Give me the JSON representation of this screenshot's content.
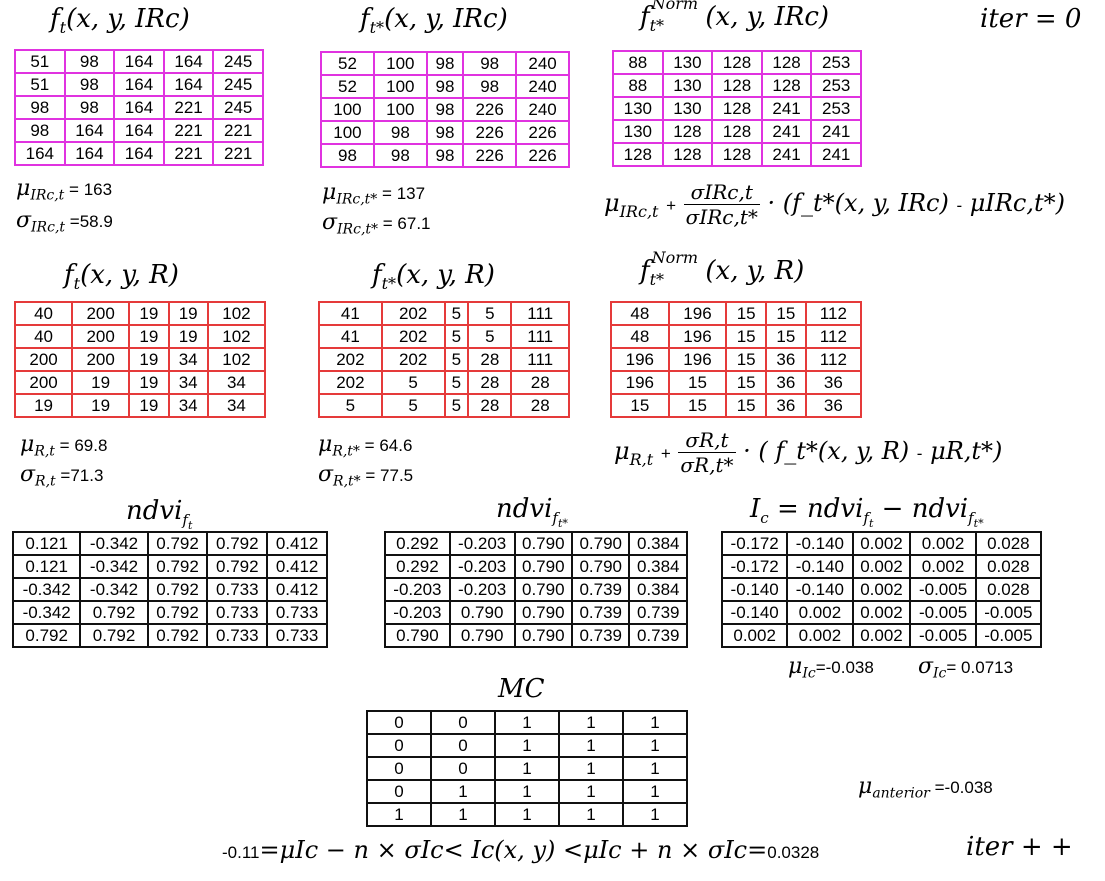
{
  "iter_label": "iter = 0",
  "iter_inc_label": "iter + +",
  "ir": {
    "orig": {
      "title": "f_t(x, y, IRc)",
      "rows": [
        [
          "51",
          "98",
          "164",
          "164",
          "245"
        ],
        [
          "51",
          "98",
          "164",
          "164",
          "245"
        ],
        [
          "98",
          "98",
          "164",
          "221",
          "245"
        ],
        [
          "98",
          "164",
          "164",
          "221",
          "221"
        ],
        [
          "164",
          "164",
          "164",
          "221",
          "221"
        ]
      ],
      "mu_sym": "μ",
      "mu_sub": "IRc,t",
      "mu_val": "= 163",
      "sigma_sym": "σ",
      "sigma_sub": "IRc,t",
      "sigma_val": "=58.9"
    },
    "star": {
      "title": "f_t*(x, y, IRc)",
      "rows": [
        [
          "52",
          "100",
          "98",
          "98",
          "240"
        ],
        [
          "52",
          "100",
          "98",
          "98",
          "240"
        ],
        [
          "100",
          "100",
          "98",
          "226",
          "240"
        ],
        [
          "100",
          "98",
          "98",
          "226",
          "226"
        ],
        [
          "98",
          "98",
          "98",
          "226",
          "226"
        ]
      ],
      "mu_sym": "μ",
      "mu_sub": "IRc,t*",
      "mu_val": "= 137",
      "sigma_sym": "σ",
      "sigma_sub": "IRc,t*",
      "sigma_val": "= 67.1"
    },
    "norm": {
      "title": "f_t*^Norm(x, y, IRc)",
      "rows": [
        [
          "88",
          "130",
          "128",
          "128",
          "253"
        ],
        [
          "88",
          "130",
          "128",
          "128",
          "253"
        ],
        [
          "130",
          "130",
          "128",
          "241",
          "253"
        ],
        [
          "130",
          "128",
          "128",
          "241",
          "241"
        ],
        [
          "128",
          "128",
          "128",
          "241",
          "241"
        ]
      ]
    },
    "formula": {
      "mu": "μ",
      "mu_sub": "IRc,t",
      "plus": "+",
      "num": "σIRc,t",
      "den": "σIRc,t*",
      "rest": "· (f_t*(x, y, IRc)",
      "minus": "-",
      "mu2": "μIRc,t*",
      "close": ")"
    }
  },
  "r": {
    "orig": {
      "title": "f_t(x, y, R)",
      "rows": [
        [
          "40",
          "200",
          "19",
          "19",
          "102"
        ],
        [
          "40",
          "200",
          "19",
          "19",
          "102"
        ],
        [
          "200",
          "200",
          "19",
          "34",
          "102"
        ],
        [
          "200",
          "19",
          "19",
          "34",
          "34"
        ],
        [
          "19",
          "19",
          "19",
          "34",
          "34"
        ]
      ],
      "mu_sym": "μ",
      "mu_sub": "R,t",
      "mu_val": "= 69.8",
      "sigma_sym": "σ",
      "sigma_sub": "R,t",
      "sigma_val": "=71.3"
    },
    "star": {
      "title": "f_t*(x, y, R)",
      "rows": [
        [
          "41",
          "202",
          "5",
          "5",
          "111"
        ],
        [
          "41",
          "202",
          "5",
          "5",
          "111"
        ],
        [
          "202",
          "202",
          "5",
          "28",
          "111"
        ],
        [
          "202",
          "5",
          "5",
          "28",
          "28"
        ],
        [
          "5",
          "5",
          "5",
          "28",
          "28"
        ]
      ],
      "mu_sym": "μ",
      "mu_sub": "R,t*",
      "mu_val": "= 64.6",
      "sigma_sym": "σ",
      "sigma_sub": "R,t*",
      "sigma_val": "= 77.5"
    },
    "norm": {
      "title": "f_t*^Norm(x, y, R)",
      "rows": [
        [
          "48",
          "196",
          "15",
          "15",
          "112"
        ],
        [
          "48",
          "196",
          "15",
          "15",
          "112"
        ],
        [
          "196",
          "196",
          "15",
          "36",
          "112"
        ],
        [
          "196",
          "15",
          "15",
          "36",
          "36"
        ],
        [
          "15",
          "15",
          "15",
          "36",
          "36"
        ]
      ]
    },
    "formula": {
      "mu": "μ",
      "mu_sub": "R,t",
      "plus": "+",
      "num": "σR,t",
      "den": "σR,t*",
      "rest": "· ( f_t*(x, y, R)",
      "minus": "-",
      "mu2": "μR,t*",
      "close": ")"
    }
  },
  "ndvi": {
    "t": {
      "title": "ndvi_ft",
      "rows": [
        [
          "0.121",
          "-0.342",
          "0.792",
          "0.792",
          "0.412"
        ],
        [
          "0.121",
          "-0.342",
          "0.792",
          "0.792",
          "0.412"
        ],
        [
          "-0.342",
          "-0.342",
          "0.792",
          "0.733",
          "0.412"
        ],
        [
          "-0.342",
          "0.792",
          "0.792",
          "0.733",
          "0.733"
        ],
        [
          "0.792",
          "0.792",
          "0.792",
          "0.733",
          "0.733"
        ]
      ]
    },
    "tstar": {
      "title": "ndvi_ft*",
      "rows": [
        [
          "0.292",
          "-0.203",
          "0.790",
          "0.790",
          "0.384"
        ],
        [
          "0.292",
          "-0.203",
          "0.790",
          "0.790",
          "0.384"
        ],
        [
          "-0.203",
          "-0.203",
          "0.790",
          "0.739",
          "0.384"
        ],
        [
          "-0.203",
          "0.790",
          "0.790",
          "0.739",
          "0.739"
        ],
        [
          "0.790",
          "0.790",
          "0.790",
          "0.739",
          "0.739"
        ]
      ]
    },
    "ic": {
      "title": "I_c = ndvi_ft − ndvi_ft*",
      "rows": [
        [
          "-0.172",
          "-0.140",
          "0.002",
          "0.002",
          "0.028"
        ],
        [
          "-0.172",
          "-0.140",
          "0.002",
          "0.002",
          "0.028"
        ],
        [
          "-0.140",
          "-0.140",
          "0.002",
          "-0.005",
          "0.028"
        ],
        [
          "-0.140",
          "0.002",
          "0.002",
          "-0.005",
          "-0.005"
        ],
        [
          "0.002",
          "0.002",
          "0.002",
          "-0.005",
          "-0.005"
        ]
      ],
      "mu_sym": "μ",
      "mu_sub": "Ic",
      "mu_val": "=-0.038",
      "sigma_sym": "σ",
      "sigma_sub": "Ic",
      "sigma_val": "= 0.0713"
    }
  },
  "mc": {
    "title": "MC",
    "rows": [
      [
        "0",
        "0",
        "1",
        "1",
        "1"
      ],
      [
        "0",
        "0",
        "1",
        "1",
        "1"
      ],
      [
        "0",
        "0",
        "1",
        "1",
        "1"
      ],
      [
        "0",
        "1",
        "1",
        "1",
        "1"
      ],
      [
        "1",
        "1",
        "1",
        "1",
        "1"
      ]
    ]
  },
  "mu_anterior": {
    "sym": "μ",
    "sub": "anterior",
    "val": "=-0.038"
  },
  "threshold": {
    "low": "-0.11",
    "expr": "=μIc − n × σIc< Ic(x, y) <μIc + n × σIc=",
    "high": "0.0328"
  }
}
